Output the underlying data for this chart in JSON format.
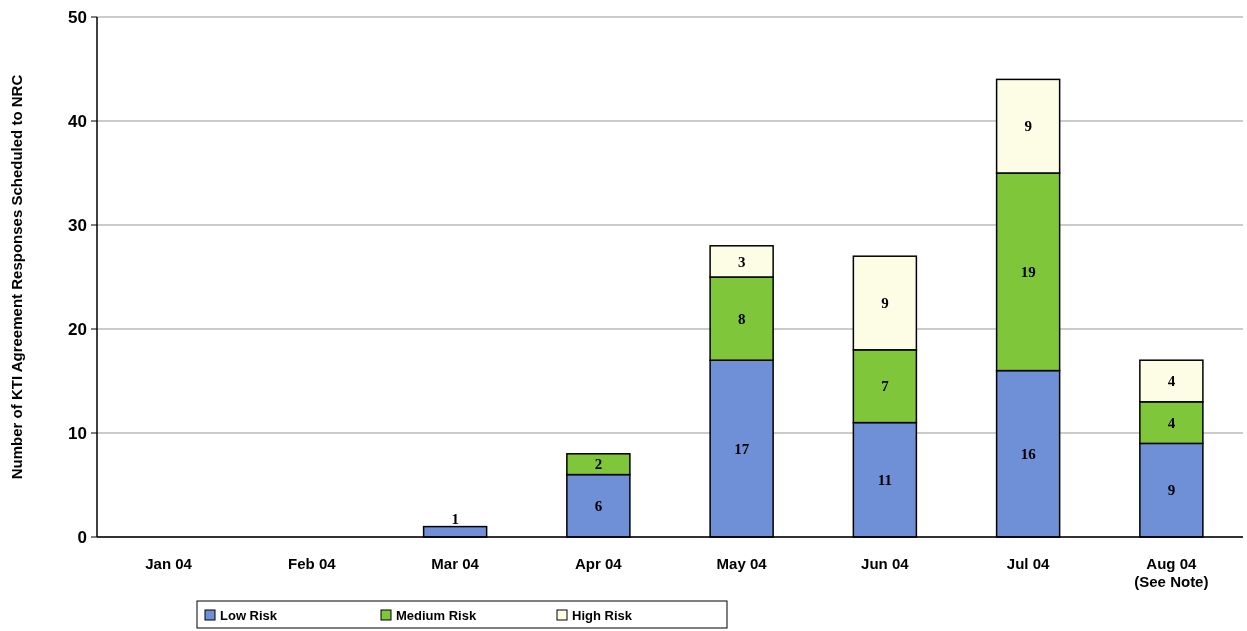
{
  "chart_data": {
    "type": "bar",
    "stacked": true,
    "ylabel": "Number of KTI Agreement Responses Scheduled to NRC",
    "categories": [
      "Jan 04",
      "Feb 04",
      "Mar 04",
      "Apr 04",
      "May 04",
      "Jun 04",
      "Jul 04",
      "Aug 04\n(See Note)"
    ],
    "series": [
      {
        "name": "Low Risk",
        "color": "#6f8fd6",
        "values": [
          null,
          null,
          1,
          6,
          17,
          11,
          16,
          9
        ]
      },
      {
        "name": "Medium Risk",
        "color": "#7fc63a",
        "values": [
          null,
          null,
          null,
          2,
          8,
          7,
          19,
          4
        ]
      },
      {
        "name": "High Risk",
        "color": "#fdfde6",
        "values": [
          null,
          null,
          null,
          null,
          3,
          9,
          9,
          4
        ]
      }
    ],
    "ylim": [
      0,
      50
    ],
    "yticks": [
      0,
      10,
      20,
      30,
      40,
      50
    ],
    "grid": "y",
    "legend": "bottom",
    "data_labels": true
  }
}
